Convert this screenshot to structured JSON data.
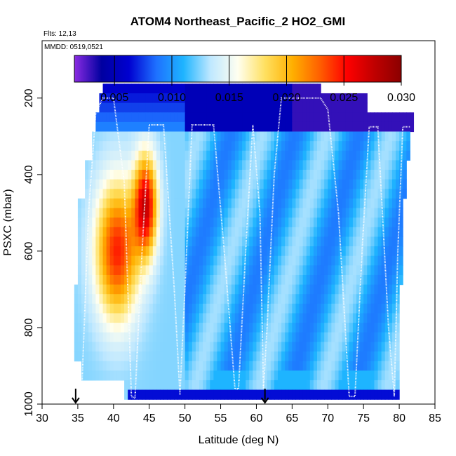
{
  "chart_data": {
    "type": "heatmap",
    "title": "ATOM4 Northeast_Pacific_2 HO2_GMI",
    "annotations": [
      "Flts: 12,13",
      "MMDD: 0519,0521"
    ],
    "xlabel": "Latitude (deg N)",
    "ylabel": "PSXC (mbar)",
    "xlim": [
      30,
      85
    ],
    "ylim": [
      1000,
      50
    ],
    "x_ticks": [
      "30",
      "35",
      "40",
      "45",
      "50",
      "55",
      "60",
      "65",
      "70",
      "75",
      "80",
      "85"
    ],
    "y_ticks": [
      "200",
      "400",
      "600",
      "800",
      "1000"
    ],
    "colorbar": {
      "range": [
        0.0015,
        0.03
      ],
      "tick_labels": [
        "0.005",
        "0.010",
        "0.015",
        "0.020",
        "0.025",
        "0.030"
      ],
      "colors": [
        "#8B2BE2",
        "#0000A0",
        "#0000D0",
        "#1E70FF",
        "#1EB4FF",
        "#BFE8FF",
        "#FFFFF0",
        "#FFE060",
        "#FFB000",
        "#FF6000",
        "#FF0000",
        "#C00000",
        "#8B0000"
      ]
    },
    "markers": [
      {
        "x": 34.7,
        "label": "arrow"
      },
      {
        "x": 61.2,
        "label": "arrow"
      }
    ],
    "flight_track": [
      [
        35.5,
        990
      ],
      [
        36.5,
        500
      ],
      [
        37.5,
        240
      ],
      [
        38.5,
        200
      ],
      [
        40.0,
        200
      ],
      [
        41.5,
        420
      ],
      [
        42.5,
        980
      ],
      [
        43.0,
        985
      ],
      [
        44.0,
        600
      ],
      [
        45.0,
        270
      ],
      [
        47.0,
        270
      ],
      [
        48.5,
        700
      ],
      [
        49.3,
        975
      ],
      [
        50.0,
        700
      ],
      [
        51.0,
        270
      ],
      [
        54.0,
        270
      ],
      [
        55.5,
        600
      ],
      [
        57.0,
        960
      ],
      [
        57.5,
        960
      ],
      [
        58.5,
        600
      ],
      [
        59.5,
        270
      ],
      [
        60.5,
        500
      ],
      [
        61.0,
        960
      ],
      [
        61.5,
        800
      ],
      [
        62.5,
        400
      ],
      [
        63.5,
        200
      ],
      [
        69.0,
        200
      ],
      [
        70.0,
        230
      ],
      [
        71.5,
        500
      ],
      [
        73.0,
        980
      ],
      [
        73.8,
        980
      ],
      [
        74.8,
        600
      ],
      [
        75.8,
        275
      ],
      [
        77.0,
        275
      ],
      [
        78.5,
        800
      ],
      [
        79.3,
        980
      ],
      [
        79.8,
        600
      ],
      [
        80.5,
        275
      ],
      [
        81.5,
        275
      ]
    ]
  }
}
